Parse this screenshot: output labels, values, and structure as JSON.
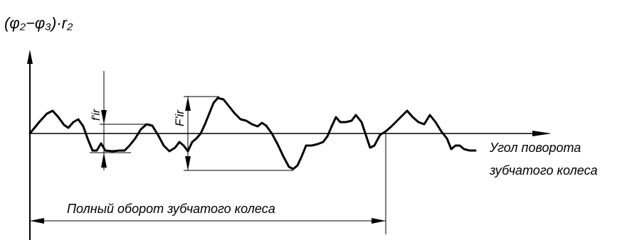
{
  "y_axis_label": "(φ₂−φ₃)·r₂",
  "x_axis_label_line1": "Угол поворота",
  "x_axis_label_line2": "зубчатого колеса",
  "full_turn_label": "Полный оборот зубчатого колеса",
  "fir_label": "f'ir",
  "Fir_label": "F'ir"
}
